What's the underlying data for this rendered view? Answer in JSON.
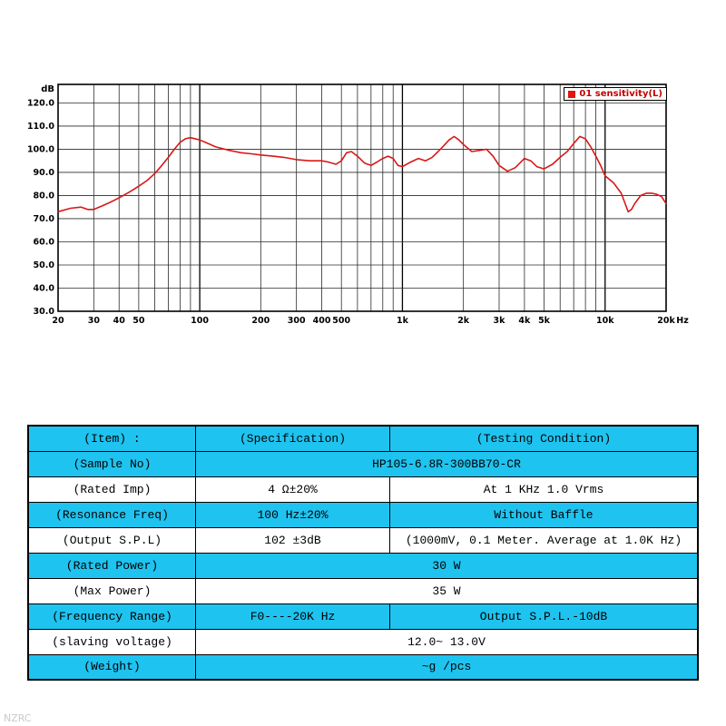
{
  "watermark": "NZRC",
  "chart_data": {
    "type": "line",
    "title": "",
    "legend": "01 sensitivity(L)",
    "legend_color": "#e51212",
    "ylabel": "dB",
    "x_unit": "Hz",
    "x_scale": "log",
    "grid": true,
    "legend_position": "top-right",
    "xlim": [
      20,
      20000
    ],
    "ylim": [
      30,
      128
    ],
    "y_ticks": [
      120,
      110,
      100,
      90,
      80,
      70,
      60,
      50,
      40,
      30
    ],
    "y_tick_labels": [
      "120.0",
      "110.0",
      "100.0",
      "90.0",
      "80.0",
      "70.0",
      "60.0",
      "50.0",
      "40.0",
      "30.0"
    ],
    "x_ticks": [
      20,
      30,
      40,
      50,
      100,
      200,
      300,
      400,
      500,
      1000,
      2000,
      3000,
      4000,
      5000,
      10000,
      20000
    ],
    "x_tick_labels": [
      "20",
      "30",
      "40",
      "50",
      "100",
      "200",
      "300",
      "400",
      "500",
      "1k",
      "2k",
      "3k",
      "4k",
      "5k",
      "10k",
      "20k"
    ],
    "series": [
      {
        "name": "01 sensitivity(L)",
        "color": "#d81818",
        "points": [
          [
            20,
            73
          ],
          [
            23,
            74.5
          ],
          [
            26,
            75
          ],
          [
            28,
            74
          ],
          [
            30,
            74
          ],
          [
            33,
            75.5
          ],
          [
            36,
            77
          ],
          [
            40,
            79
          ],
          [
            45,
            81.5
          ],
          [
            50,
            84
          ],
          [
            55,
            86.5
          ],
          [
            60,
            89.5
          ],
          [
            65,
            93
          ],
          [
            70,
            96.5
          ],
          [
            75,
            100
          ],
          [
            80,
            103
          ],
          [
            85,
            104.5
          ],
          [
            90,
            105
          ],
          [
            100,
            104
          ],
          [
            110,
            102.5
          ],
          [
            120,
            101
          ],
          [
            140,
            99.5
          ],
          [
            160,
            98.5
          ],
          [
            180,
            98
          ],
          [
            200,
            97.5
          ],
          [
            230,
            97
          ],
          [
            260,
            96.5
          ],
          [
            300,
            95.5
          ],
          [
            350,
            95
          ],
          [
            400,
            95
          ],
          [
            430,
            94.5
          ],
          [
            470,
            93.5
          ],
          [
            500,
            95
          ],
          [
            530,
            98.5
          ],
          [
            560,
            99
          ],
          [
            600,
            97
          ],
          [
            650,
            94
          ],
          [
            700,
            93
          ],
          [
            750,
            94.5
          ],
          [
            800,
            96
          ],
          [
            850,
            97
          ],
          [
            900,
            96
          ],
          [
            950,
            93
          ],
          [
            1000,
            92.5
          ],
          [
            1100,
            94.5
          ],
          [
            1200,
            96
          ],
          [
            1300,
            95
          ],
          [
            1400,
            96.5
          ],
          [
            1500,
            99
          ],
          [
            1600,
            101.5
          ],
          [
            1700,
            104
          ],
          [
            1800,
            105.5
          ],
          [
            1900,
            104
          ],
          [
            2000,
            102
          ],
          [
            2200,
            99
          ],
          [
            2400,
            99.5
          ],
          [
            2600,
            100
          ],
          [
            2800,
            97
          ],
          [
            3000,
            93
          ],
          [
            3300,
            90.5
          ],
          [
            3600,
            92
          ],
          [
            4000,
            96
          ],
          [
            4300,
            95
          ],
          [
            4600,
            92.5
          ],
          [
            5000,
            91.5
          ],
          [
            5500,
            93.5
          ],
          [
            6000,
            96.5
          ],
          [
            6500,
            99
          ],
          [
            7000,
            102.5
          ],
          [
            7500,
            105.5
          ],
          [
            8000,
            104.5
          ],
          [
            8500,
            101
          ],
          [
            9000,
            97
          ],
          [
            9500,
            93
          ],
          [
            10000,
            88.5
          ],
          [
            11000,
            85.5
          ],
          [
            12000,
            81
          ],
          [
            12500,
            77
          ],
          [
            13000,
            73
          ],
          [
            13500,
            74
          ],
          [
            14000,
            76.5
          ],
          [
            15000,
            80
          ],
          [
            16000,
            81
          ],
          [
            17000,
            81
          ],
          [
            18000,
            80.5
          ],
          [
            19000,
            79.5
          ],
          [
            20000,
            76.5
          ]
        ]
      }
    ]
  },
  "table": {
    "rows": [
      {
        "bg": "cyan",
        "cells": [
          {
            "t": "(Item) :"
          },
          {
            "t": "(Specification)"
          },
          {
            "t": "(Testing Condition)"
          }
        ]
      },
      {
        "bg": "cyan",
        "cells": [
          {
            "t": "(Sample No)"
          },
          {
            "t": "HP105-6.8R-300BB70-CR",
            "span": "2"
          }
        ]
      },
      {
        "bg": "white",
        "cells": [
          {
            "t": "(Rated Imp)"
          },
          {
            "t": "4 Ω±20%"
          },
          {
            "t": "At 1 KHz  1.0 Vrms"
          }
        ]
      },
      {
        "bg": "cyan",
        "cells": [
          {
            "t": "(Resonance Freq)"
          },
          {
            "t": "100 Hz±20%"
          },
          {
            "t": "Without Baffle"
          }
        ]
      },
      {
        "bg": "white",
        "cells": [
          {
            "t": "(Output S.P.L)"
          },
          {
            "t": "102 ±3dB"
          },
          {
            "t": "(1000mV, 0.1 Meter. Average at 1.0K Hz)"
          }
        ]
      },
      {
        "bg": "cyan",
        "cells": [
          {
            "t": "(Rated Power)"
          },
          {
            "t": "30 W",
            "span": "2"
          }
        ]
      },
      {
        "bg": "white",
        "cells": [
          {
            "t": "(Max Power)"
          },
          {
            "t": "35 W",
            "span": "2"
          }
        ]
      },
      {
        "bg": "cyan",
        "cells": [
          {
            "t": "(Frequency Range)"
          },
          {
            "t": "F0----20K Hz"
          },
          {
            "t": "Output S.P.L.-10dB"
          }
        ]
      },
      {
        "bg": "white",
        "cells": [
          {
            "t": "(slaving voltage)"
          },
          {
            "t": "12.0~ 13.0V",
            "span": "2"
          }
        ]
      },
      {
        "bg": "cyan",
        "cells": [
          {
            "t": "(Weight)"
          },
          {
            "t": "~g /pcs",
            "span": "2"
          }
        ]
      }
    ]
  }
}
